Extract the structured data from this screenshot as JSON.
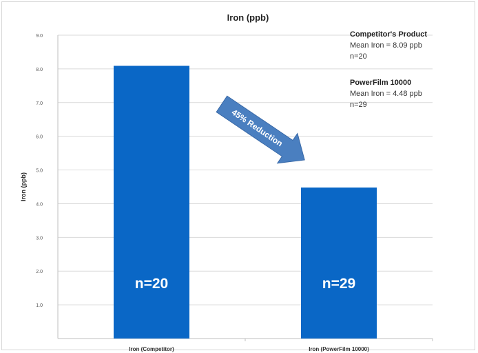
{
  "chart_data": {
    "type": "bar",
    "title": "Iron (ppb)",
    "xlabel": "",
    "ylabel": "Iron (ppb)",
    "ylim": [
      0,
      9
    ],
    "yticks": [
      "1.0",
      "2.0",
      "3.0",
      "4.0",
      "5.0",
      "6.0",
      "7.0",
      "8.0",
      "9.0"
    ],
    "grid": true,
    "categories": [
      "Iron (Competitor)",
      "Iron (PowerFilm 10000)"
    ],
    "values": [
      8.09,
      4.48
    ],
    "bar_labels": [
      "n=20",
      "n=29"
    ],
    "bar_color": "#0a67c6",
    "arrow_label": "45% Reduction",
    "arrow_color": "#4a7fc0",
    "annotations": [
      {
        "heading": "Competitor's Product",
        "line1": "Mean Iron = 8.09 ppb",
        "line2": "n=20"
      },
      {
        "heading": "PowerFilm 10000",
        "line1": "Mean Iron = 4.48 ppb",
        "line2": "n=29"
      }
    ]
  }
}
